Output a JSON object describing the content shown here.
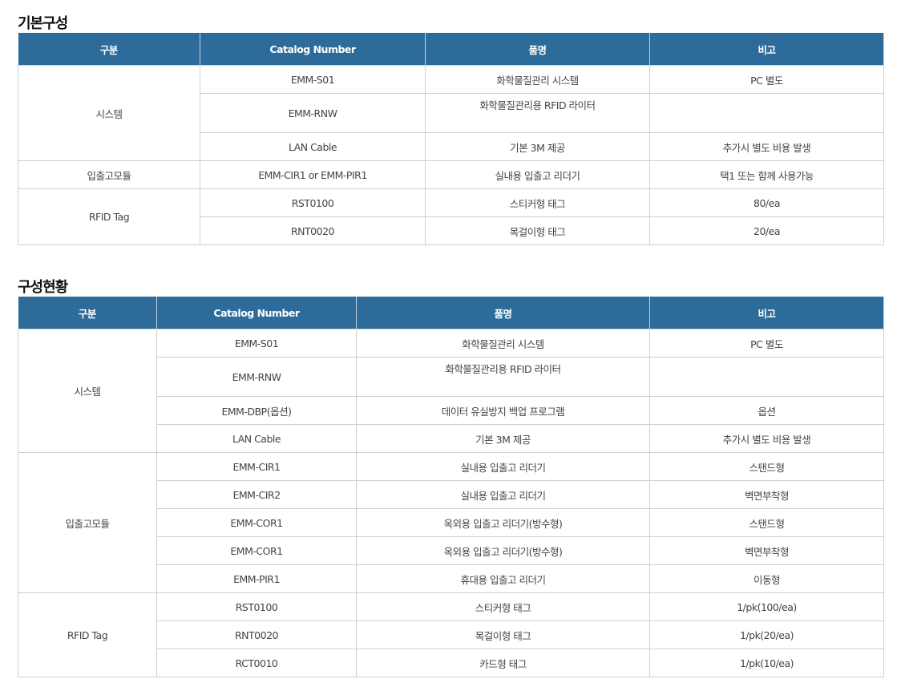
{
  "sections": [
    {
      "title": "기본구성",
      "headers": [
        "구분",
        "Catalog Number",
        "품명",
        "비고"
      ],
      "groups": [
        {
          "category": "시스템",
          "rows": [
            {
              "catalog": "EMM-S01",
              "name": "화학물질관리 시스템",
              "note": "PC 별도"
            },
            {
              "catalog": "EMM-RNW",
              "name": "화학물질관리용 RFID 라이터",
              "note": "",
              "tall": true
            },
            {
              "catalog": "LAN Cable",
              "name": "기본 3M 제공",
              "note": "추가시 별도 비용 발생"
            }
          ]
        },
        {
          "category": "입출고모듈",
          "rows": [
            {
              "catalog": "EMM-CIR1 or EMM-PIR1",
              "name": "실내용 입출고 리더기",
              "note": "택1 또는 함께 사용가능"
            }
          ]
        },
        {
          "category": "RFID Tag",
          "rows": [
            {
              "catalog": "RST0100",
              "name": "스티커형 태그",
              "note": "80/ea"
            },
            {
              "catalog": "RNT0020",
              "name": "목걸이형 태그",
              "note": "20/ea"
            }
          ]
        }
      ]
    },
    {
      "title": "구성현황",
      "headers": [
        "구분",
        "Catalog Number",
        "품명",
        "비고"
      ],
      "groups": [
        {
          "category": "시스템",
          "rows": [
            {
              "catalog": "EMM-S01",
              "name": "화학물질관리 시스템",
              "note": "PC 별도"
            },
            {
              "catalog": "EMM-RNW",
              "name": "화학물질관리용 RFID 라이터",
              "note": "",
              "tall": true
            },
            {
              "catalog": "EMM-DBP(옵션)",
              "name": "데이터 유실방지 백업 프로그램",
              "note": "옵션"
            },
            {
              "catalog": "LAN Cable",
              "name": "기본 3M 제공",
              "note": "추가시 별도 비용 발생"
            }
          ]
        },
        {
          "category": "입출고모듈",
          "rows": [
            {
              "catalog": "EMM-CIR1",
              "name": "실내용 입출고 리더기",
              "note": "스탠드형"
            },
            {
              "catalog": "EMM-CIR2",
              "name": "실내용 입출고 리더기",
              "note": "벽면부착형"
            },
            {
              "catalog": "EMM-COR1",
              "name": "옥외용 입출고 리더기(방수형)",
              "note": "스탠드형"
            },
            {
              "catalog": "EMM-COR1",
              "name": "옥외용 입출고 리더기(방수형)",
              "note": "벽면부착형"
            },
            {
              "catalog": "EMM-PIR1",
              "name": "휴대용 입출고 리더기",
              "note": "이동형"
            }
          ]
        },
        {
          "category": "RFID Tag",
          "rows": [
            {
              "catalog": "RST0100",
              "name": "스티커형 태그",
              "note": "1/pk(100/ea)"
            },
            {
              "catalog": "RNT0020",
              "name": "목걸이형 태그",
              "note": "1/pk(20/ea)"
            },
            {
              "catalog": "RCT0010",
              "name": "카드형 태그",
              "note": "1/pk(10/ea)"
            }
          ]
        }
      ]
    }
  ],
  "colors": {
    "header": "#2d6b9a",
    "border": "#cfcfcf"
  }
}
